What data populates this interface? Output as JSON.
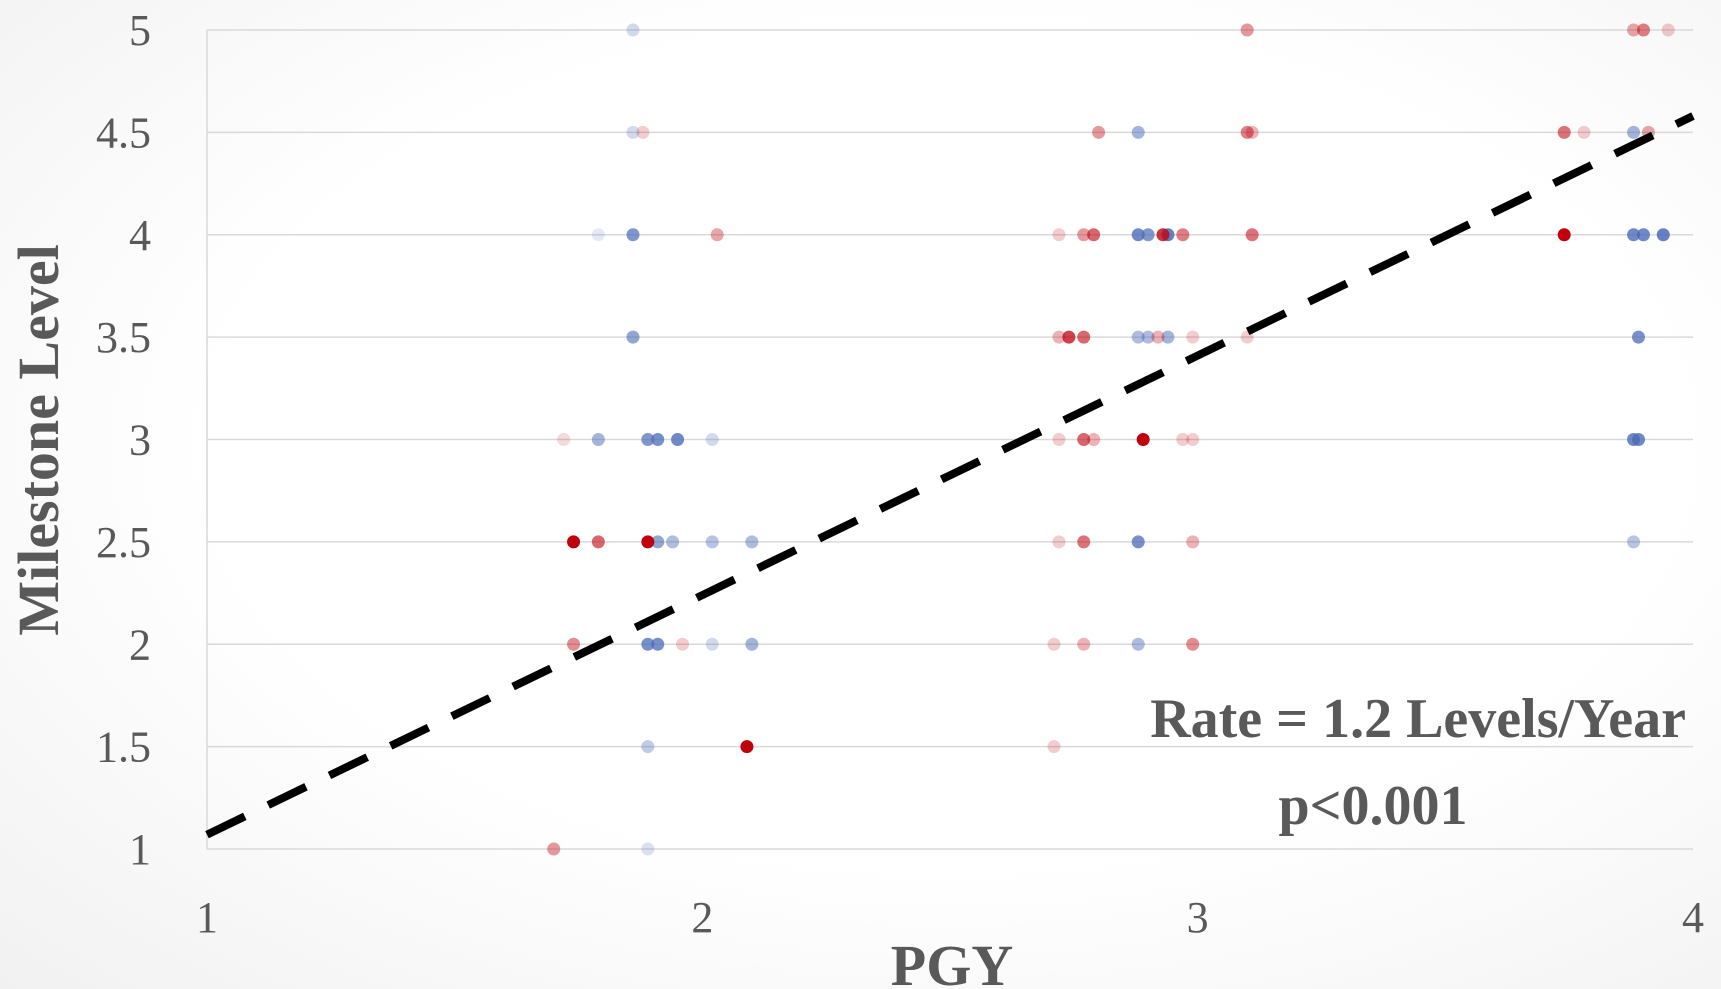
{
  "chart_data": {
    "type": "scatter",
    "xlabel": "PGY",
    "ylabel": "Milestone Level",
    "xlim": [
      1,
      4
    ],
    "ylim": [
      1,
      5
    ],
    "x_ticks": [
      "1",
      "2",
      "3",
      "4"
    ],
    "y_ticks": [
      "1",
      "1.5",
      "2",
      "2.5",
      "3",
      "3.5",
      "4",
      "4.5",
      "5"
    ],
    "grid": "horizontal",
    "annotations": [
      "Rate = 1.2 Levels/Year",
      "p<0.001"
    ],
    "trendline": {
      "style": "dashed",
      "color": "#000000",
      "x": [
        1,
        4
      ],
      "y": [
        1.07,
        4.58
      ]
    },
    "series": [
      {
        "color": "#4a6bb8",
        "points": [
          {
            "x": 1.86,
            "y": 5,
            "a": 0.25
          },
          {
            "x": 1.86,
            "y": 4.5,
            "a": 0.25
          },
          {
            "x": 1.86,
            "y": 4,
            "a": 0.7
          },
          {
            "x": 1.79,
            "y": 4,
            "a": 0.15
          },
          {
            "x": 1.86,
            "y": 3.5,
            "a": 0.6
          },
          {
            "x": 1.79,
            "y": 3,
            "a": 0.5
          },
          {
            "x": 1.89,
            "y": 3,
            "a": 0.7
          },
          {
            "x": 1.91,
            "y": 3,
            "a": 0.75
          },
          {
            "x": 1.95,
            "y": 3,
            "a": 0.8
          },
          {
            "x": 2.02,
            "y": 3,
            "a": 0.25
          },
          {
            "x": 1.91,
            "y": 2.5,
            "a": 0.6
          },
          {
            "x": 1.94,
            "y": 2.5,
            "a": 0.45
          },
          {
            "x": 2.02,
            "y": 2.5,
            "a": 0.4
          },
          {
            "x": 2.1,
            "y": 2.5,
            "a": 0.45
          },
          {
            "x": 1.89,
            "y": 2,
            "a": 0.75
          },
          {
            "x": 1.91,
            "y": 2,
            "a": 0.75
          },
          {
            "x": 2.02,
            "y": 2,
            "a": 0.25
          },
          {
            "x": 2.1,
            "y": 2,
            "a": 0.5
          },
          {
            "x": 1.89,
            "y": 1.5,
            "a": 0.35
          },
          {
            "x": 1.89,
            "y": 1,
            "a": 0.2
          },
          {
            "x": 2.88,
            "y": 4.5,
            "a": 0.5
          },
          {
            "x": 2.88,
            "y": 4,
            "a": 0.8
          },
          {
            "x": 2.9,
            "y": 4,
            "a": 0.7
          },
          {
            "x": 2.94,
            "y": 4,
            "a": 0.85
          },
          {
            "x": 2.88,
            "y": 3.5,
            "a": 0.45
          },
          {
            "x": 2.9,
            "y": 3.5,
            "a": 0.45
          },
          {
            "x": 2.94,
            "y": 3.5,
            "a": 0.5
          },
          {
            "x": 2.88,
            "y": 2.5,
            "a": 0.75
          },
          {
            "x": 2.88,
            "y": 2,
            "a": 0.45
          },
          {
            "x": 3.88,
            "y": 4.5,
            "a": 0.5
          },
          {
            "x": 3.88,
            "y": 4,
            "a": 0.8
          },
          {
            "x": 3.9,
            "y": 4,
            "a": 0.8
          },
          {
            "x": 3.94,
            "y": 4,
            "a": 0.85
          },
          {
            "x": 3.89,
            "y": 3.5,
            "a": 0.75
          },
          {
            "x": 3.88,
            "y": 3,
            "a": 0.8
          },
          {
            "x": 3.89,
            "y": 3,
            "a": 0.8
          },
          {
            "x": 3.88,
            "y": 2.5,
            "a": 0.4
          }
        ]
      },
      {
        "color": "#c0000b",
        "points": [
          {
            "x": 1.88,
            "y": 4.5,
            "a": 0.2
          },
          {
            "x": 2.03,
            "y": 4,
            "a": 0.35
          },
          {
            "x": 1.72,
            "y": 3,
            "a": 0.15
          },
          {
            "x": 1.74,
            "y": 2.5,
            "a": 1.0
          },
          {
            "x": 1.79,
            "y": 2.5,
            "a": 0.6
          },
          {
            "x": 1.89,
            "y": 2.5,
            "a": 1.0
          },
          {
            "x": 1.74,
            "y": 2,
            "a": 0.45
          },
          {
            "x": 1.96,
            "y": 2,
            "a": 0.2
          },
          {
            "x": 2.09,
            "y": 1.5,
            "a": 1.0
          },
          {
            "x": 1.7,
            "y": 1,
            "a": 0.4
          },
          {
            "x": 3.1,
            "y": 5,
            "a": 0.4
          },
          {
            "x": 2.8,
            "y": 4.5,
            "a": 0.4
          },
          {
            "x": 3.1,
            "y": 4.5,
            "a": 0.5
          },
          {
            "x": 3.11,
            "y": 4.5,
            "a": 0.3
          },
          {
            "x": 2.72,
            "y": 4,
            "a": 0.2
          },
          {
            "x": 2.77,
            "y": 4,
            "a": 0.4
          },
          {
            "x": 2.79,
            "y": 4,
            "a": 0.6
          },
          {
            "x": 2.93,
            "y": 4,
            "a": 0.8
          },
          {
            "x": 2.97,
            "y": 4,
            "a": 0.5
          },
          {
            "x": 3.11,
            "y": 4,
            "a": 0.55
          },
          {
            "x": 2.72,
            "y": 3.5,
            "a": 0.3
          },
          {
            "x": 2.74,
            "y": 3.5,
            "a": 0.75
          },
          {
            "x": 2.77,
            "y": 3.5,
            "a": 0.6
          },
          {
            "x": 2.92,
            "y": 3.5,
            "a": 0.3
          },
          {
            "x": 2.99,
            "y": 3.5,
            "a": 0.2
          },
          {
            "x": 3.1,
            "y": 3.5,
            "a": 0.2
          },
          {
            "x": 2.72,
            "y": 3,
            "a": 0.2
          },
          {
            "x": 2.77,
            "y": 3,
            "a": 0.6
          },
          {
            "x": 2.79,
            "y": 3,
            "a": 0.3
          },
          {
            "x": 2.89,
            "y": 3,
            "a": 1.0
          },
          {
            "x": 2.97,
            "y": 3,
            "a": 0.2
          },
          {
            "x": 2.99,
            "y": 3,
            "a": 0.2
          },
          {
            "x": 2.72,
            "y": 2.5,
            "a": 0.2
          },
          {
            "x": 2.77,
            "y": 2.5,
            "a": 0.55
          },
          {
            "x": 2.99,
            "y": 2.5,
            "a": 0.3
          },
          {
            "x": 2.71,
            "y": 2,
            "a": 0.2
          },
          {
            "x": 2.77,
            "y": 2,
            "a": 0.3
          },
          {
            "x": 2.99,
            "y": 2,
            "a": 0.45
          },
          {
            "x": 2.71,
            "y": 1.5,
            "a": 0.2
          },
          {
            "x": 3.88,
            "y": 5,
            "a": 0.35
          },
          {
            "x": 3.9,
            "y": 5,
            "a": 0.5
          },
          {
            "x": 3.95,
            "y": 5,
            "a": 0.2
          },
          {
            "x": 3.74,
            "y": 4.5,
            "a": 0.55
          },
          {
            "x": 3.78,
            "y": 4.5,
            "a": 0.2
          },
          {
            "x": 3.91,
            "y": 4.5,
            "a": 0.35
          },
          {
            "x": 3.74,
            "y": 4,
            "a": 1.0
          }
        ]
      }
    ]
  }
}
